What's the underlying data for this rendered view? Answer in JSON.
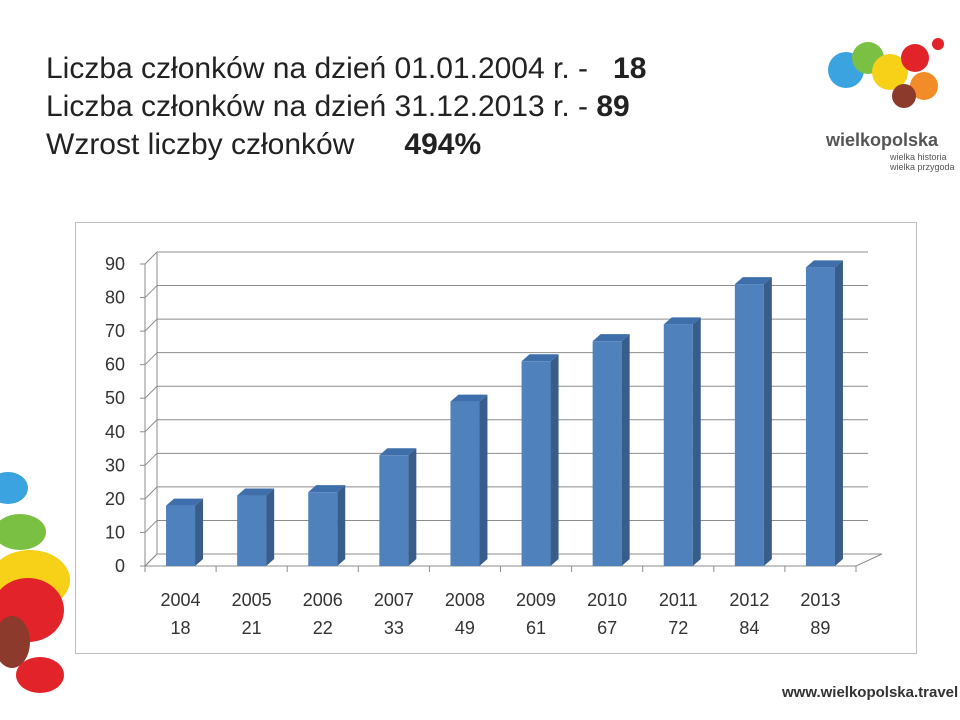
{
  "header": {
    "line1_label": "Liczba członków na dzień 01.01.2004 r. -",
    "line1_value": "18",
    "line2_label": "Liczba członków na dzień 31.12.2013 r. -",
    "line2_value": "89",
    "line3_label": "Wzrost liczby członków",
    "line3_value": "494%"
  },
  "logo": {
    "word": "wielkopolska",
    "tag1": "wielka historia",
    "tag2": "wielka przygoda"
  },
  "footer": {
    "url": "www.wielkopolska.travel"
  },
  "colors": {
    "bar_front": "#4F81BD",
    "bar_side": "#385D8A",
    "bar_top": "#3F6FAA"
  },
  "chart_data": {
    "type": "bar",
    "categories": [
      "2004",
      "2005",
      "2006",
      "2007",
      "2008",
      "2009",
      "2010",
      "2011",
      "2012",
      "2013"
    ],
    "category_values": [
      "18",
      "21",
      "22",
      "33",
      "49",
      "61",
      "67",
      "72",
      "84",
      "89"
    ],
    "values": [
      18,
      21,
      22,
      33,
      49,
      61,
      67,
      72,
      84,
      89
    ],
    "ylim": [
      0,
      90
    ],
    "yticks": [
      0,
      10,
      20,
      30,
      40,
      50,
      60,
      70,
      80,
      90
    ],
    "title": "",
    "xlabel": "",
    "ylabel": "",
    "grid": true,
    "legend": "none",
    "style": "3d-columns"
  }
}
